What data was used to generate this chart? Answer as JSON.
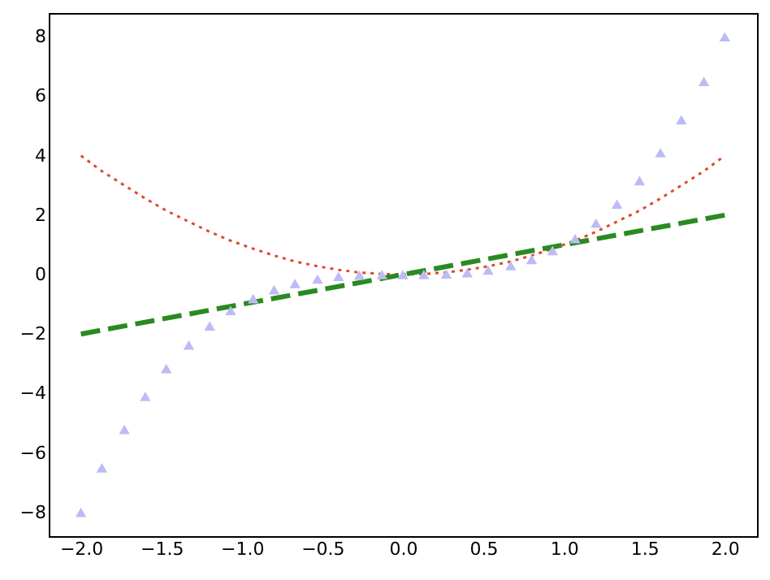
{
  "chart_data": {
    "type": "line",
    "xlim": [
      -2.2,
      2.2
    ],
    "ylim": [
      -8.8,
      8.8
    ],
    "xticks": [
      {
        "value": -2,
        "label": "−2.0"
      },
      {
        "value": -1.5,
        "label": "−1.5"
      },
      {
        "value": -1,
        "label": "−1.0"
      },
      {
        "value": -0.5,
        "label": "−0.5"
      },
      {
        "value": 0,
        "label": "0.0"
      },
      {
        "value": 0.5,
        "label": "0.5"
      },
      {
        "value": 1,
        "label": "1.0"
      },
      {
        "value": 1.5,
        "label": "1.5"
      },
      {
        "value": 2,
        "label": "2.0"
      }
    ],
    "yticks": [
      {
        "value": -8,
        "label": "−8"
      },
      {
        "value": -6,
        "label": "−6"
      },
      {
        "value": -4,
        "label": "−4"
      },
      {
        "value": -2,
        "label": "−2"
      },
      0,
      2,
      4,
      6,
      8
    ],
    "grid": false,
    "series": [
      {
        "line_style": "dotted",
        "color": "#e04a2a",
        "x": [
          -2,
          -1.87,
          -1.73,
          -1.6,
          -1.47,
          -1.33,
          -1.2,
          -1.07,
          -0.93,
          -0.8,
          -0.67,
          -0.53,
          -0.4,
          -0.27,
          -0.13,
          0,
          0.13,
          0.27,
          0.4,
          0.53,
          0.67,
          0.8,
          0.93,
          1.07,
          1.2,
          1.33,
          1.47,
          1.6,
          1.73,
          1.87,
          2
        ],
        "values": [
          4,
          3.48,
          3.0,
          2.56,
          2.15,
          1.78,
          1.44,
          1.14,
          0.87,
          0.64,
          0.44,
          0.28,
          0.16,
          0.07,
          0.02,
          0,
          0.02,
          0.07,
          0.16,
          0.28,
          0.44,
          0.64,
          0.87,
          1.14,
          1.44,
          1.78,
          2.15,
          2.56,
          3.0,
          3.48,
          4
        ]
      },
      {
        "line_style": "dashed",
        "color": "#2a8a22",
        "x": [
          -2,
          2
        ],
        "values": [
          -2,
          2
        ]
      },
      {
        "type": "scatter",
        "marker": "triangle",
        "color": "#bcbcf4",
        "x": [
          -2,
          -1.87,
          -1.73,
          -1.6,
          -1.47,
          -1.33,
          -1.2,
          -1.07,
          -0.93,
          -0.8,
          -0.67,
          -0.53,
          -0.4,
          -0.27,
          -0.13,
          0,
          0.13,
          0.27,
          0.4,
          0.53,
          0.67,
          0.8,
          0.93,
          1.07,
          1.2,
          1.33,
          1.47,
          1.6,
          1.73,
          1.87,
          2
        ],
        "values": [
          -8,
          -6.5,
          -5.21,
          -4.1,
          -3.16,
          -2.37,
          -1.73,
          -1.21,
          -0.81,
          -0.51,
          -0.3,
          -0.15,
          -0.06,
          -0.02,
          0,
          0,
          0,
          0.02,
          0.06,
          0.15,
          0.3,
          0.51,
          0.81,
          1.21,
          1.73,
          2.37,
          3.16,
          4.1,
          5.21,
          6.5,
          8
        ]
      }
    ]
  }
}
